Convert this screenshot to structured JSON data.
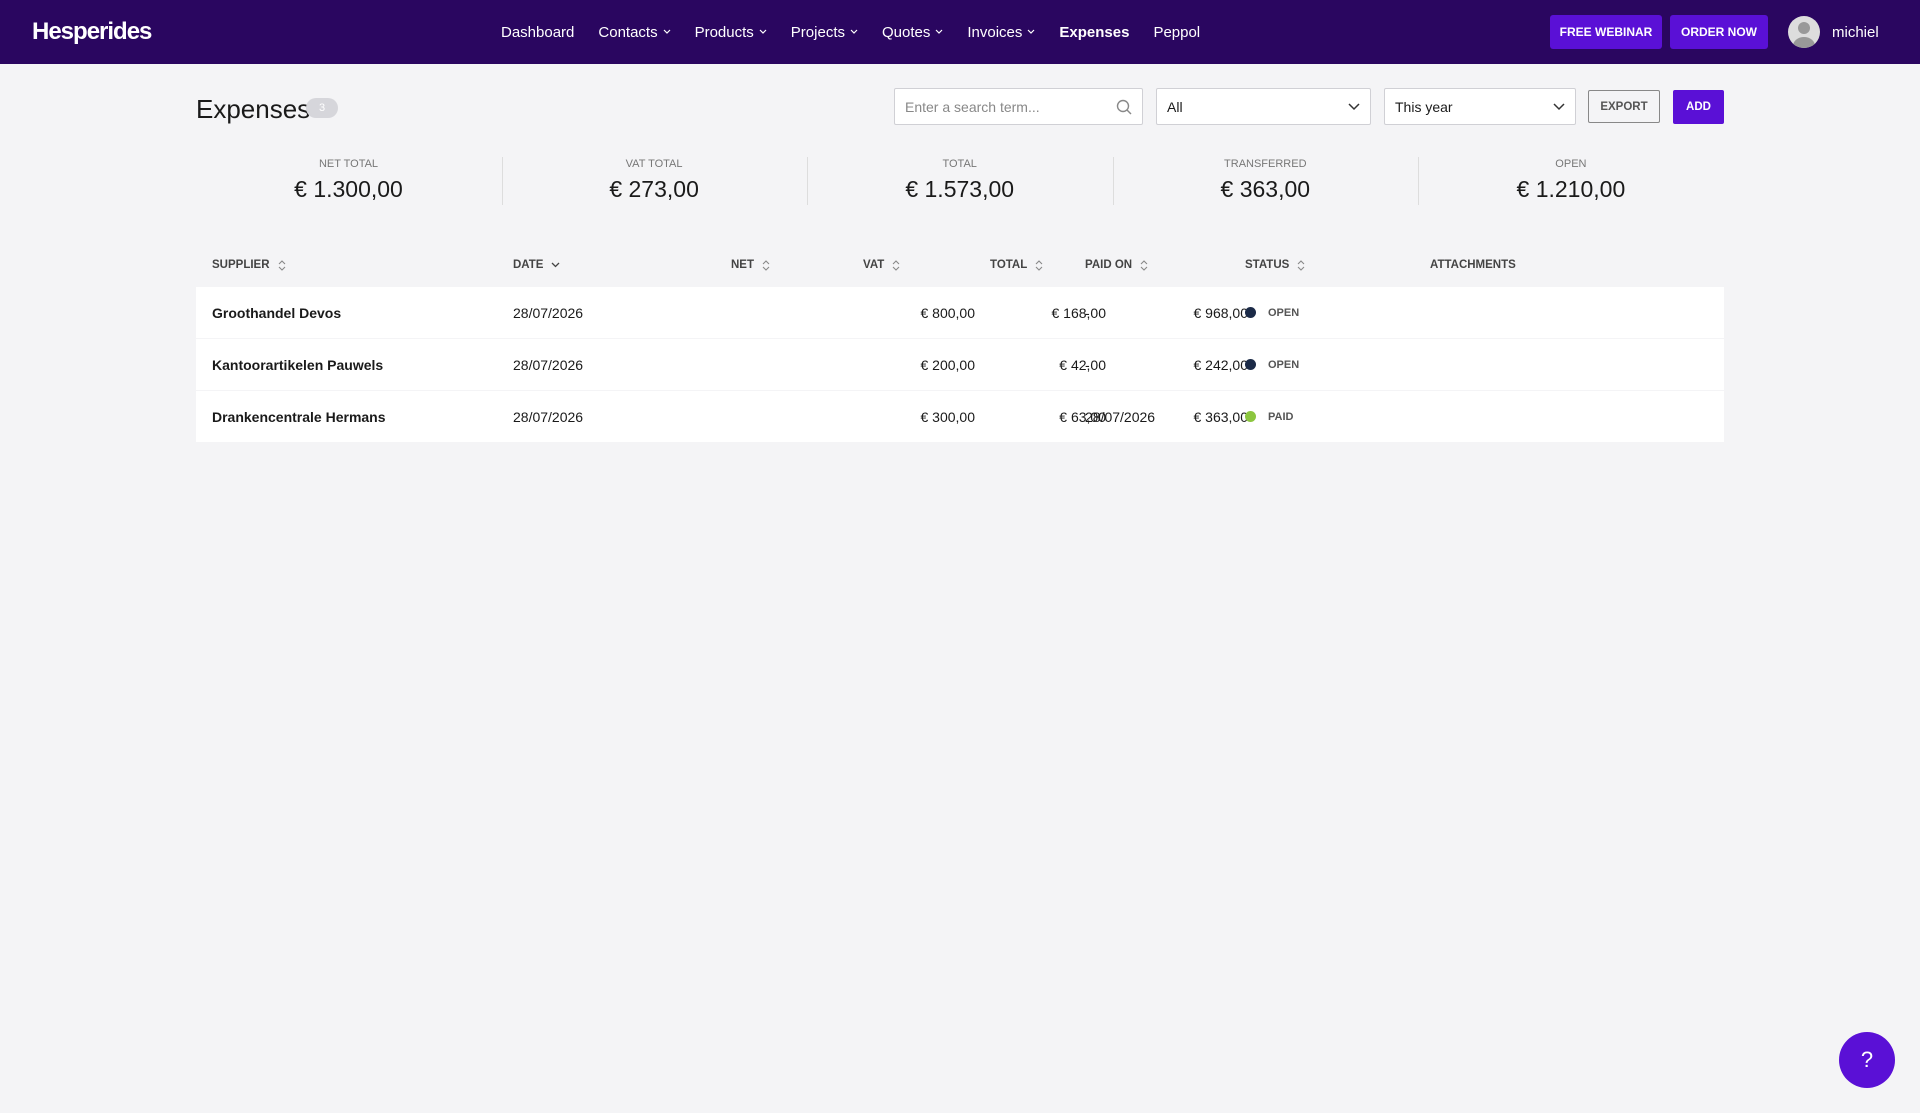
{
  "header": {
    "logo": "Hesperides",
    "nav": [
      "Dashboard",
      "Contacts",
      "Products",
      "Projects",
      "Quotes",
      "Invoices",
      "Expenses",
      "Peppol"
    ],
    "buttons": [
      "FREE WEBINAR",
      "ORDER NOW"
    ],
    "user": "michiel"
  },
  "toolbar": {
    "title": "Expenses",
    "count": 3,
    "search_placeholder": "Enter a search term...",
    "filter": "All",
    "period": "This year",
    "export": "EXPORT",
    "add": "ADD"
  },
  "stats": [
    {
      "label": "NET TOTAL",
      "value": "€ 1.300,00"
    },
    {
      "label": "VAT TOTAL",
      "value": "€ 273,00"
    },
    {
      "label": "TOTAL",
      "value": "€ 1.573,00"
    },
    {
      "label": "TRANSFERRED",
      "value": "€ 363,00"
    },
    {
      "label": "OPEN",
      "value": "€ 1.210,00"
    }
  ],
  "table": {
    "columns": [
      "SUPPLIER",
      "DATE",
      "NET",
      "VAT",
      "TOTAL",
      "PAID ON",
      "STATUS",
      "ATTACHMENTS"
    ],
    "rows": [
      [
        "Groothandel Devos",
        "28/07/2026",
        "€ 800,00",
        "€ 168,00",
        "€ 968,00",
        "-",
        "OPEN"
      ],
      [
        "Kantoorartikelen Pauwels",
        "28/07/2026",
        "€ 200,00",
        "€ 42,00",
        "€ 242,00",
        "-",
        "OPEN"
      ],
      [
        "Drankencentrale Hermans",
        "28/07/2026",
        "€ 300,00",
        "€ 63,00",
        "€ 363,00",
        "28/07/2026",
        "PAID"
      ]
    ]
  },
  "help": "?"
}
